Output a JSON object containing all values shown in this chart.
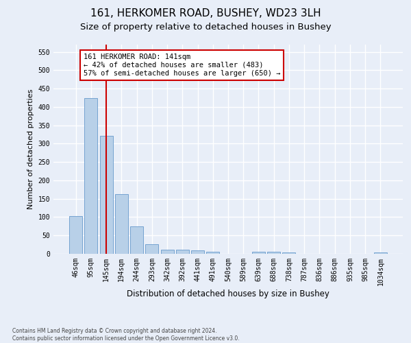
{
  "title1": "161, HERKOMER ROAD, BUSHEY, WD23 3LH",
  "title2": "Size of property relative to detached houses in Bushey",
  "xlabel": "Distribution of detached houses by size in Bushey",
  "ylabel": "Number of detached properties",
  "footnote": "Contains HM Land Registry data © Crown copyright and database right 2024.\nContains public sector information licensed under the Open Government Licence v3.0.",
  "bar_labels": [
    "46sqm",
    "95sqm",
    "145sqm",
    "194sqm",
    "244sqm",
    "293sqm",
    "342sqm",
    "392sqm",
    "441sqm",
    "491sqm",
    "540sqm",
    "589sqm",
    "639sqm",
    "688sqm",
    "738sqm",
    "787sqm",
    "836sqm",
    "886sqm",
    "935sqm",
    "985sqm",
    "1034sqm"
  ],
  "bar_heights": [
    103,
    425,
    321,
    163,
    75,
    26,
    12,
    12,
    9,
    5,
    0,
    0,
    6,
    6,
    3,
    0,
    0,
    0,
    0,
    0,
    4
  ],
  "bar_color": "#b8d0e8",
  "bar_edge_color": "#6699cc",
  "bar_width": 0.85,
  "vline_x": 2.0,
  "vline_color": "#cc0000",
  "annotation_line1": "161 HERKOMER ROAD: 141sqm",
  "annotation_line2": "← 42% of detached houses are smaller (483)",
  "annotation_line3": "57% of semi-detached houses are larger (650) →",
  "annotation_box_color": "#ffffff",
  "annotation_box_edge_color": "#cc0000",
  "ylim": [
    0,
    570
  ],
  "yticks": [
    0,
    50,
    100,
    150,
    200,
    250,
    300,
    350,
    400,
    450,
    500,
    550
  ],
  "bg_color": "#e8eef8",
  "grid_color": "#ffffff",
  "title1_fontsize": 11,
  "title2_fontsize": 9.5,
  "xlabel_fontsize": 8.5,
  "ylabel_fontsize": 8,
  "tick_fontsize": 7,
  "footnote_fontsize": 5.5,
  "annotation_fontsize": 7.5
}
